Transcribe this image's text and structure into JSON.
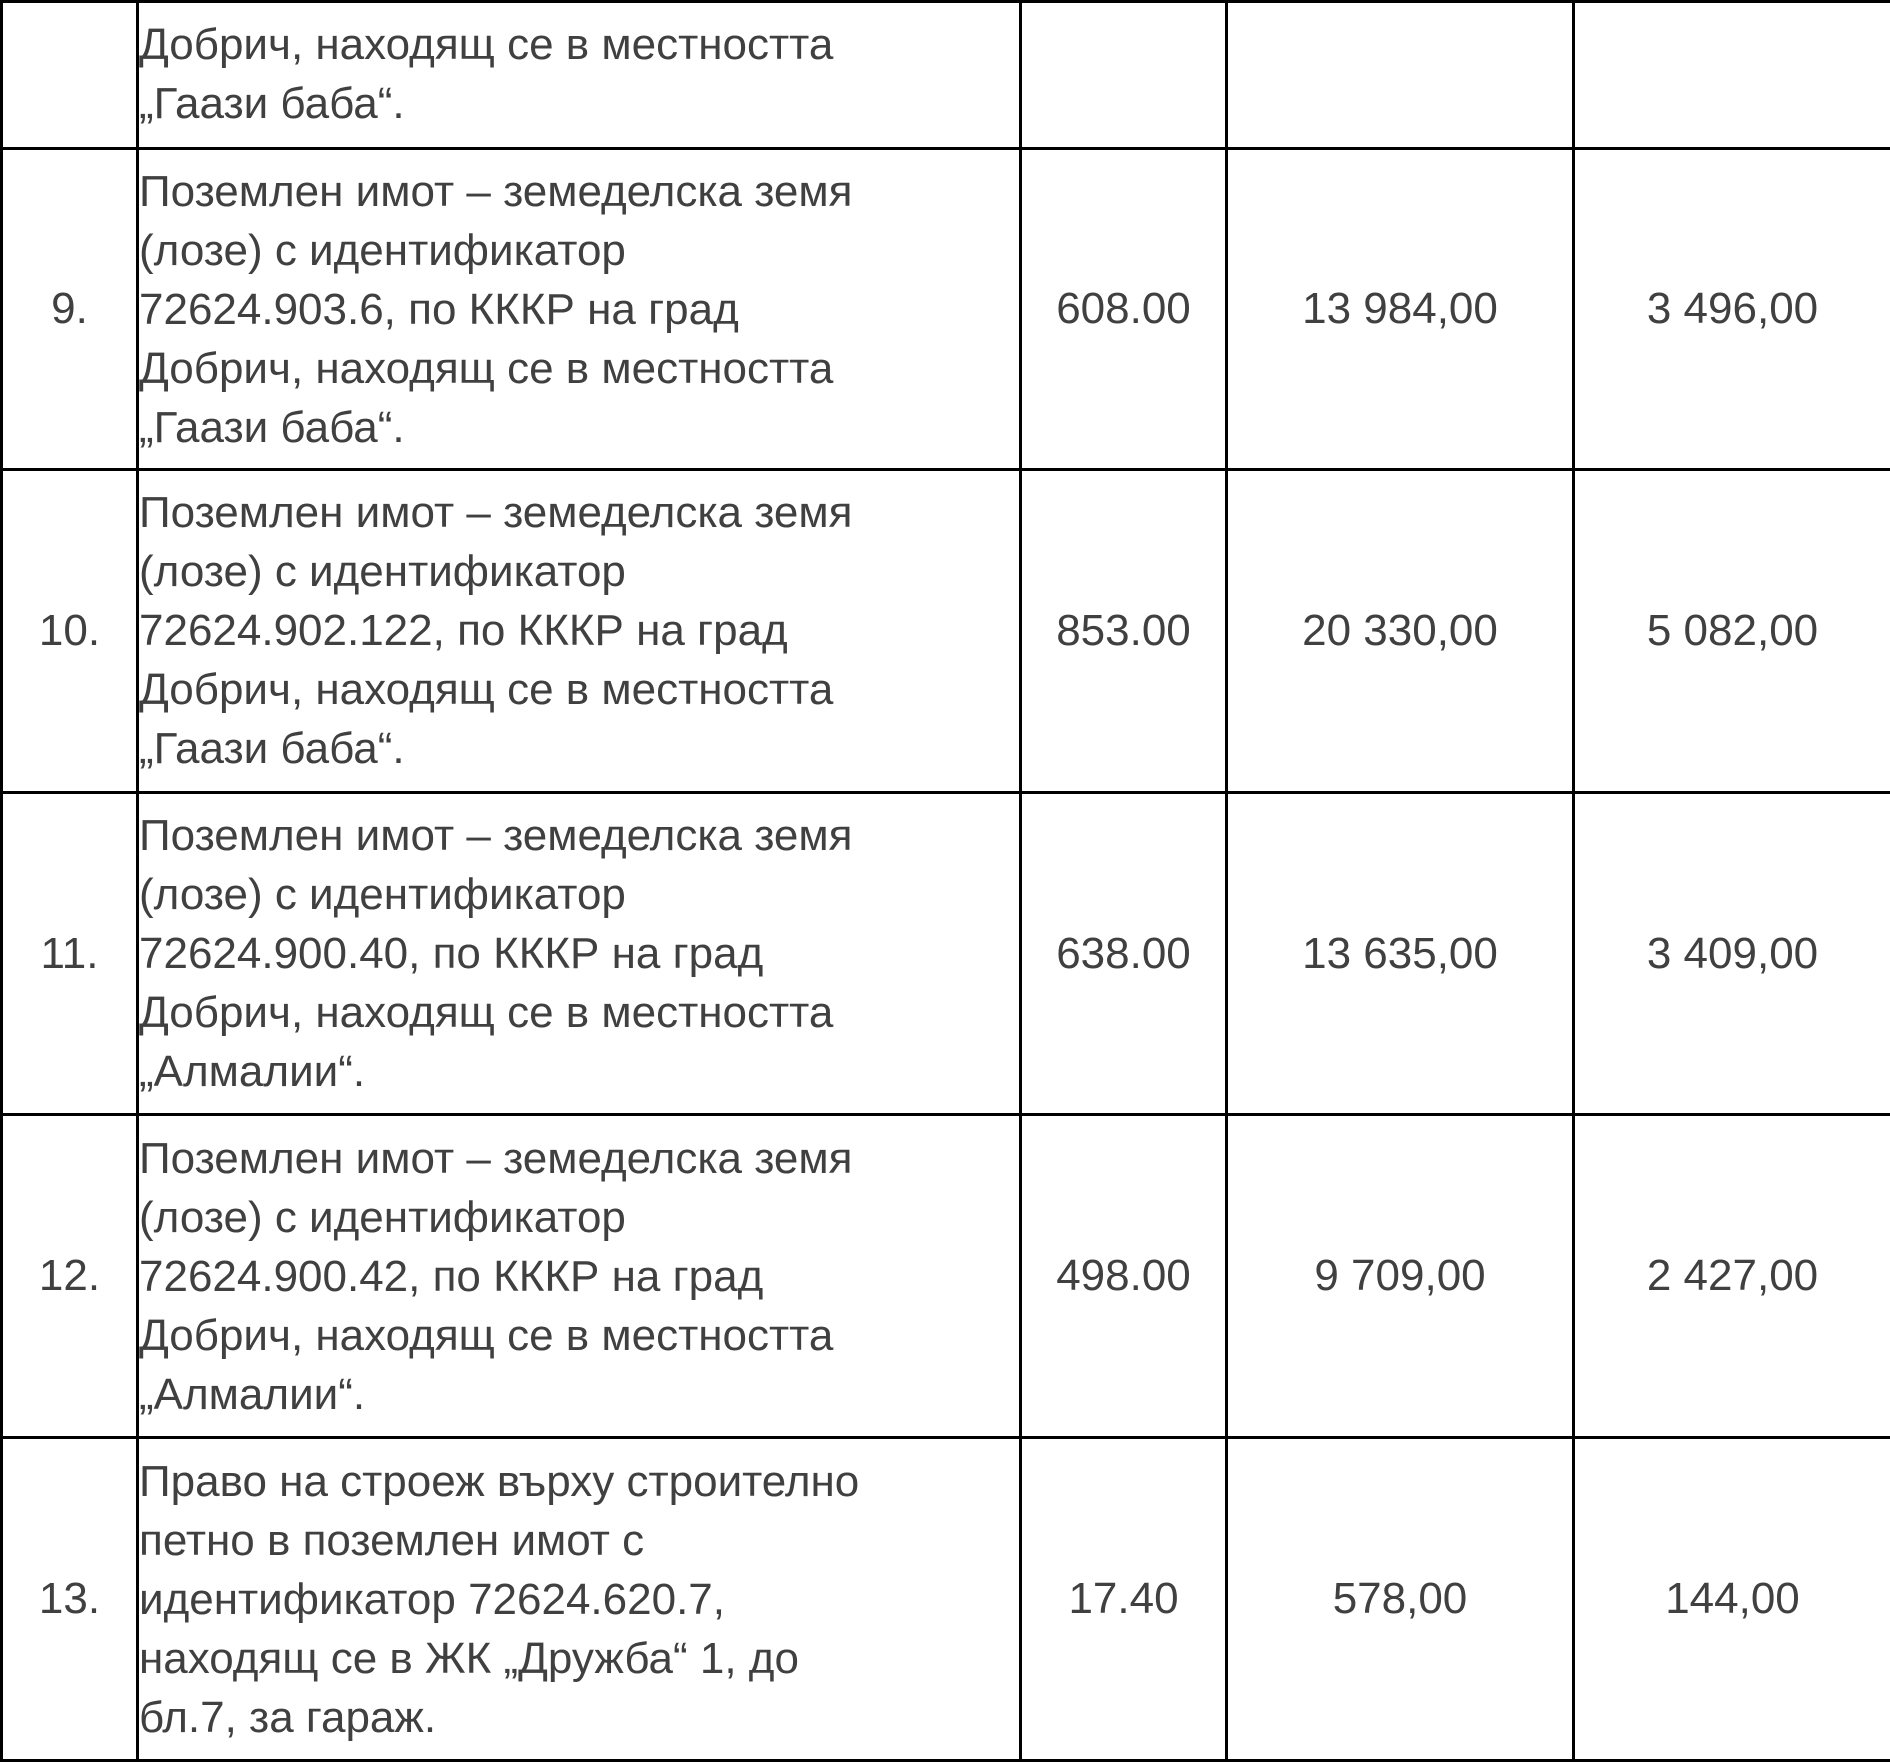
{
  "table": {
    "columns": [
      "row_number",
      "description",
      "area",
      "value1",
      "value2"
    ],
    "colors": {
      "border": "#000000",
      "text": "#404040",
      "background": "#ffffff"
    },
    "rows": [
      {
        "num": "",
        "description": "Добрич, находящ се в местността\n„Гаази баба“.",
        "area": "",
        "value1": "",
        "value2": ""
      },
      {
        "num": "9.",
        "description": "Поземлен имот – земеделска земя\n(лозе) с идентификатор\n72624.903.6, по КККР на град\nДобрич, находящ се в местността\n„Гаази баба“.",
        "area": "608.00",
        "value1": "13 984,00",
        "value2": "3 496,00"
      },
      {
        "num": "10.",
        "description": "Поземлен имот – земеделска земя\n(лозе) с идентификатор\n72624.902.122, по КККР на град\nДобрич, находящ се в местността\n„Гаази баба“.",
        "area": "853.00",
        "value1": "20 330,00",
        "value2": "5 082,00"
      },
      {
        "num": "11.",
        "description": "Поземлен имот – земеделска земя\n(лозе) с идентификатор\n72624.900.40, по КККР на град\nДобрич, находящ се в местността\n„Алмалии“.",
        "area": "638.00",
        "value1": "13 635,00",
        "value2": "3 409,00"
      },
      {
        "num": "12.",
        "description": "Поземлен имот – земеделска земя\n(лозе) с идентификатор\n72624.900.42, по КККР на град\nДобрич, находящ се в местността\n„Алмалии“.",
        "area": "498.00",
        "value1": "9 709,00",
        "value2": "2 427,00"
      },
      {
        "num": "13.",
        "description": "Право на строеж върху строително\nпетно в поземлен имот с\nидентификатор 72624.620.7,\nнаходящ се в ЖК „Дружба“ 1, до\nбл.7, за гараж.",
        "area": "17.40",
        "value1": "578,00",
        "value2": "144,00"
      }
    ]
  }
}
